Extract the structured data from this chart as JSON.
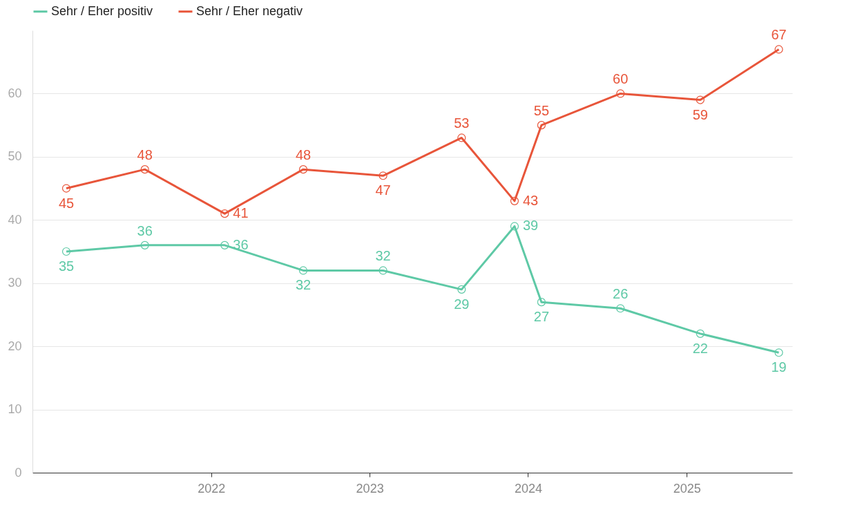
{
  "chart_data": {
    "type": "line",
    "x": [
      "2021-02",
      "2021-08",
      "2022-02",
      "2022-08",
      "2023-02",
      "2023-08",
      "2023-12",
      "2024-02",
      "2024-08",
      "2025-02",
      "2025-08"
    ],
    "series": [
      {
        "name": "Sehr / Eher positiv",
        "color": "#5ec9a6",
        "values": [
          35,
          36,
          36,
          32,
          32,
          29,
          39,
          27,
          26,
          22,
          19
        ]
      },
      {
        "name": "Sehr / Eher negativ",
        "color": "#e8553a",
        "values": [
          45,
          48,
          41,
          48,
          47,
          53,
          43,
          55,
          60,
          59,
          67
        ]
      }
    ],
    "xlim": [
      "2020-11-15",
      "2025-09-01"
    ],
    "xticks": [
      "2022",
      "2023",
      "2024",
      "2025"
    ],
    "ylim": [
      0,
      70
    ],
    "yticks": [
      0,
      10,
      20,
      30,
      40,
      50,
      60
    ],
    "grid": "y",
    "legend": "top",
    "marker": "circle",
    "line_style": "solid",
    "data_labels": true
  }
}
